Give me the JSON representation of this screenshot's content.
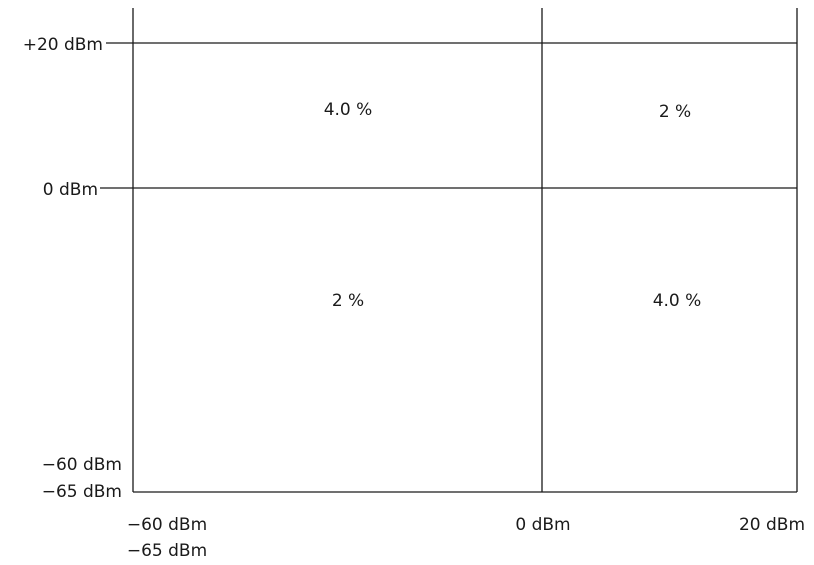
{
  "y_axis": {
    "ticks": [
      "+20 dBm",
      "0 dBm"
    ],
    "min_labels": [
      "−60 dBm",
      "−65 dBm"
    ]
  },
  "x_axis": {
    "min_labels": [
      "−60 dBm",
      "−65 dBm"
    ],
    "ticks": [
      "0 dBm",
      "20 dBm"
    ]
  },
  "regions": {
    "top_left": "4.0 %",
    "top_right": "2 %",
    "bottom_left": "2 %",
    "bottom_right": "4.0 %"
  },
  "colors": {
    "line": "#1a1a1a",
    "background": "#ffffff"
  }
}
